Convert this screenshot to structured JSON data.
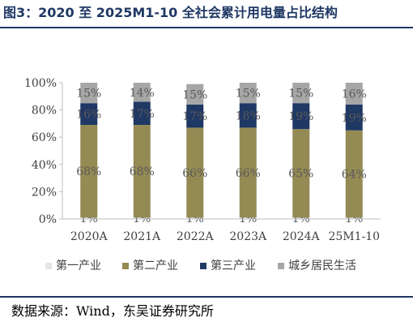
{
  "figure": {
    "title": "图3：2020 至 2025M1-10 全社会累计用电量占比结构",
    "source": "数据来源：Wind，东吴证券研究所"
  },
  "chart_data": {
    "type": "bar",
    "stacked": true,
    "categories": [
      "2020A",
      "2021A",
      "2022A",
      "2023A",
      "2024A",
      "25M1-10"
    ],
    "series": [
      {
        "name": "第一产业",
        "values": [
          1,
          1,
          1,
          1,
          1,
          1
        ],
        "color": "#e6e6e6",
        "labels": [
          "1%",
          "1%",
          "1%",
          "1%",
          "1%",
          "1%"
        ]
      },
      {
        "name": "第二产业",
        "values": [
          68,
          68,
          66,
          66,
          65,
          64
        ],
        "color": "#948a54",
        "labels": [
          "68%",
          "68%",
          "66%",
          "66%",
          "65%",
          "64%"
        ]
      },
      {
        "name": "第三产业",
        "values": [
          16,
          17,
          17,
          18,
          19,
          19
        ],
        "color": "#1f3864",
        "labels": [
          "16%",
          "17%",
          "17%",
          "18%",
          "19%",
          "19%"
        ]
      },
      {
        "name": "城乡居民生活",
        "values": [
          15,
          14,
          15,
          15,
          15,
          16
        ],
        "color": "#a6a6a6",
        "labels": [
          "15%",
          "14%",
          "15%",
          "15%",
          "15%",
          "16%"
        ]
      }
    ],
    "ylim": [
      0,
      100
    ],
    "yticks": [
      "0%",
      "20%",
      "40%",
      "60%",
      "80%",
      "100%"
    ],
    "grid": false,
    "legend_position": "bottom"
  }
}
